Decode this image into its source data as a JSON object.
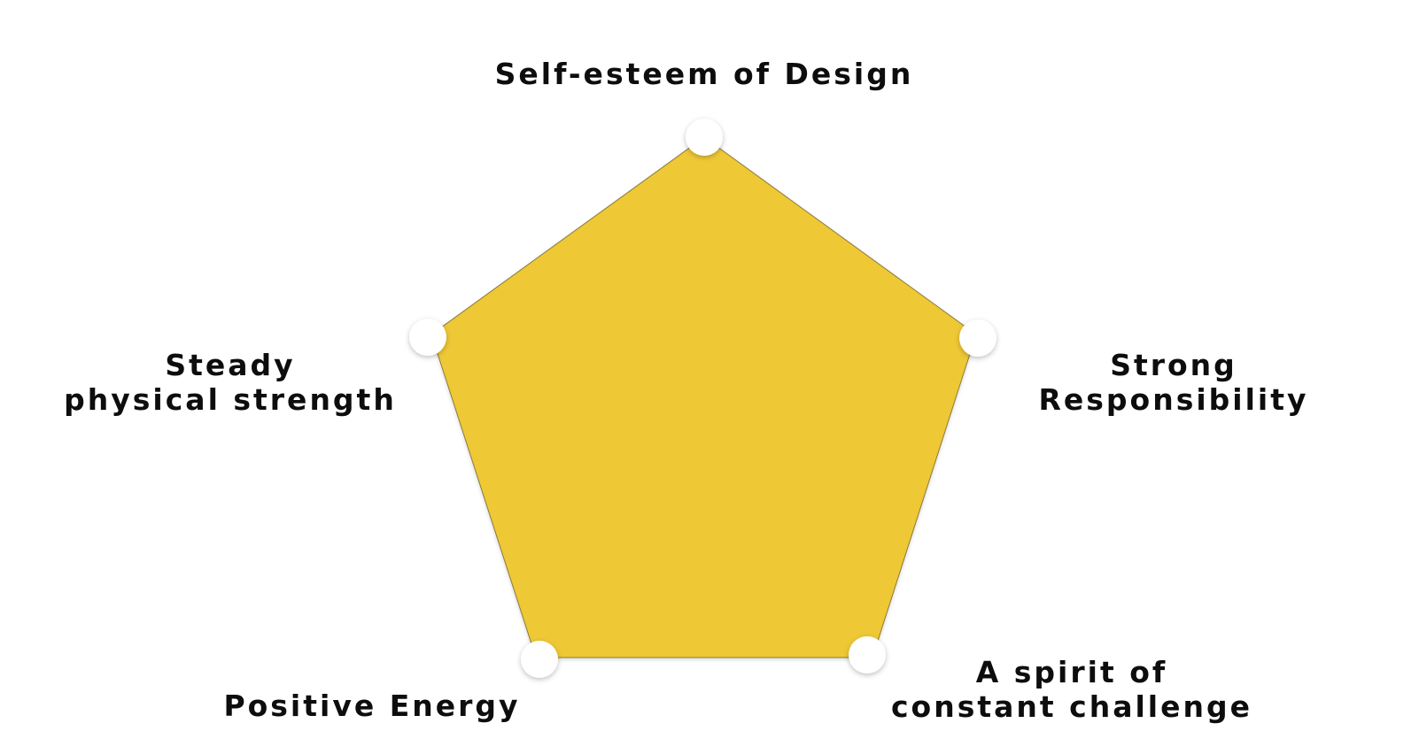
{
  "diagram": {
    "shape": "pentagon",
    "fill_color": "#EEC835",
    "stroke_color": "#8a7a3a",
    "node_color": "#ffffff",
    "labels": {
      "top": "Self-esteem of Design",
      "left": [
        "Steady",
        "physical strength"
      ],
      "right": [
        "Strong",
        "Responsibility"
      ],
      "bottom_left": "Positive Energy",
      "bottom_right": [
        "A spirit of",
        "constant challenge"
      ]
    }
  }
}
